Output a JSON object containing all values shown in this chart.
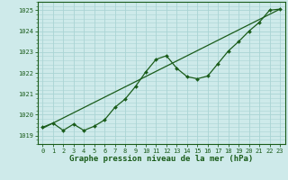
{
  "title": "Graphe pression niveau de la mer (hPa)",
  "bg_color": "#ceeaea",
  "grid_color": "#aad4d4",
  "line_color": "#1a5c1a",
  "xlim": [
    -0.5,
    23.5
  ],
  "ylim": [
    1018.6,
    1025.4
  ],
  "yticks": [
    1019,
    1020,
    1021,
    1022,
    1023,
    1024,
    1025
  ],
  "xticks": [
    0,
    1,
    2,
    3,
    4,
    5,
    6,
    7,
    8,
    9,
    10,
    11,
    12,
    13,
    14,
    15,
    16,
    17,
    18,
    19,
    20,
    21,
    22,
    23
  ],
  "pressure_x": [
    0,
    1,
    2,
    3,
    4,
    5,
    6,
    7,
    8,
    9,
    10,
    11,
    12,
    13,
    14,
    15,
    16,
    17,
    18,
    19,
    20,
    21,
    22,
    23
  ],
  "pressure_y": [
    1019.4,
    1019.6,
    1019.25,
    1019.55,
    1019.25,
    1019.45,
    1019.75,
    1020.35,
    1020.75,
    1021.35,
    1022.05,
    1022.65,
    1022.82,
    1022.22,
    1021.82,
    1021.72,
    1021.85,
    1022.45,
    1023.05,
    1023.5,
    1024.0,
    1024.42,
    1025.0,
    1025.05
  ],
  "trend_x": [
    0,
    23
  ],
  "trend_y": [
    1019.35,
    1025.05
  ],
  "title_fontsize": 6.5,
  "tick_fontsize": 5.0
}
